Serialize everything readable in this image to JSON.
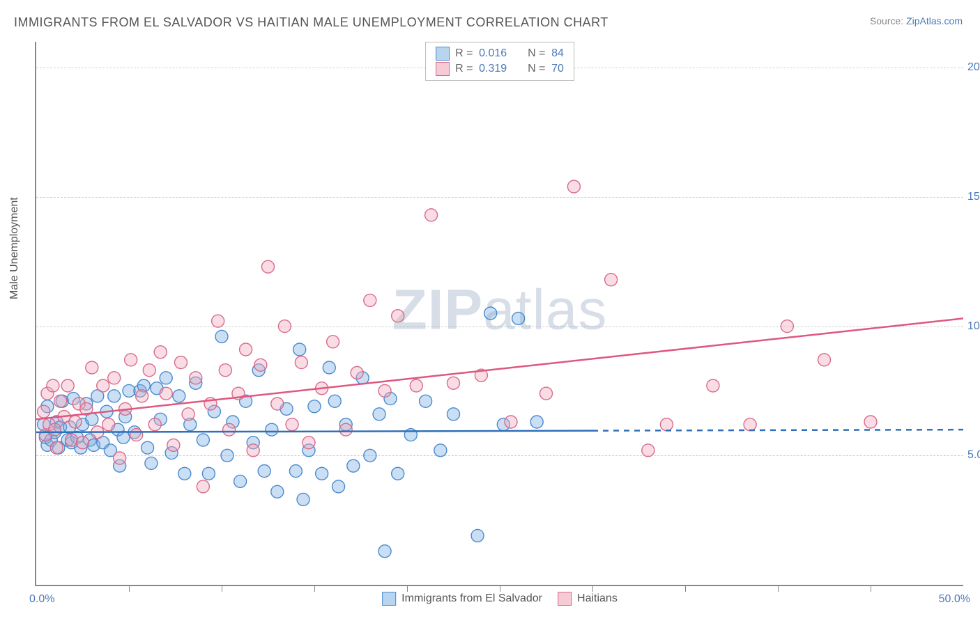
{
  "title": "IMMIGRANTS FROM EL SALVADOR VS HAITIAN MALE UNEMPLOYMENT CORRELATION CHART",
  "source_label": "Source: ",
  "source_value": "ZipAtlas.com",
  "ylabel": "Male Unemployment",
  "watermark_bold": "ZIP",
  "watermark_rest": "atlas",
  "chart": {
    "type": "scatter",
    "background_color": "#ffffff",
    "grid_color": "#d0d0d0",
    "axis_color": "#888888",
    "tick_label_color": "#4a7ab8",
    "xlim": [
      0,
      50
    ],
    "ylim": [
      0,
      21
    ],
    "xticks": [
      5,
      10,
      15,
      20,
      25,
      30,
      35,
      40,
      45
    ],
    "yticks": [
      {
        "v": 5,
        "label": "5.0%"
      },
      {
        "v": 10,
        "label": "10.0%"
      },
      {
        "v": 15,
        "label": "15.0%"
      },
      {
        "v": 20,
        "label": "20.0%"
      }
    ],
    "x_min_label": "0.0%",
    "x_max_label": "50.0%",
    "label_fontsize": 16,
    "title_fontsize": 18,
    "marker_radius": 9,
    "marker_stroke_width": 1.4,
    "marker_fill_opacity": 0.4,
    "series": [
      {
        "name": "Immigrants from El Salvador",
        "short": "blue",
        "R": "0.016",
        "N": "84",
        "color_fill": "#7ab0e0",
        "color_stroke": "#4a8acf",
        "trend": {
          "x1": 0,
          "y1": 5.9,
          "x2": 30,
          "y2": 6.0,
          "x_dash_to": 50,
          "color": "#2f6fb8",
          "width": 2.5
        },
        "points": [
          [
            0.4,
            6.2
          ],
          [
            0.5,
            5.7
          ],
          [
            0.6,
            5.4
          ],
          [
            0.6,
            6.9
          ],
          [
            0.8,
            5.6
          ],
          [
            1.0,
            5.9
          ],
          [
            1.1,
            6.3
          ],
          [
            1.2,
            5.3
          ],
          [
            1.3,
            6.1
          ],
          [
            1.4,
            7.1
          ],
          [
            1.7,
            5.6
          ],
          [
            1.8,
            6.1
          ],
          [
            1.9,
            5.5
          ],
          [
            2.0,
            7.2
          ],
          [
            2.2,
            5.7
          ],
          [
            2.4,
            5.3
          ],
          [
            2.5,
            6.2
          ],
          [
            2.7,
            7.0
          ],
          [
            2.9,
            5.6
          ],
          [
            3.0,
            6.4
          ],
          [
            3.1,
            5.4
          ],
          [
            3.3,
            7.3
          ],
          [
            3.6,
            5.5
          ],
          [
            3.8,
            6.7
          ],
          [
            4.0,
            5.2
          ],
          [
            4.2,
            7.3
          ],
          [
            4.4,
            6.0
          ],
          [
            4.5,
            4.6
          ],
          [
            4.7,
            5.7
          ],
          [
            4.8,
            6.5
          ],
          [
            5.0,
            7.5
          ],
          [
            5.3,
            5.9
          ],
          [
            5.6,
            7.5
          ],
          [
            5.8,
            7.7
          ],
          [
            6.0,
            5.3
          ],
          [
            6.2,
            4.7
          ],
          [
            6.5,
            7.6
          ],
          [
            6.7,
            6.4
          ],
          [
            7.0,
            8.0
          ],
          [
            7.3,
            5.1
          ],
          [
            7.7,
            7.3
          ],
          [
            8.0,
            4.3
          ],
          [
            8.3,
            6.2
          ],
          [
            8.6,
            7.8
          ],
          [
            9.0,
            5.6
          ],
          [
            9.3,
            4.3
          ],
          [
            9.6,
            6.7
          ],
          [
            10.0,
            9.6
          ],
          [
            10.3,
            5.0
          ],
          [
            10.6,
            6.3
          ],
          [
            11.0,
            4.0
          ],
          [
            11.3,
            7.1
          ],
          [
            11.7,
            5.5
          ],
          [
            12.0,
            8.3
          ],
          [
            12.3,
            4.4
          ],
          [
            12.7,
            6.0
          ],
          [
            13.0,
            3.6
          ],
          [
            13.5,
            6.8
          ],
          [
            14.0,
            4.4
          ],
          [
            14.2,
            9.1
          ],
          [
            14.4,
            3.3
          ],
          [
            14.7,
            5.2
          ],
          [
            15.0,
            6.9
          ],
          [
            15.4,
            4.3
          ],
          [
            15.8,
            8.4
          ],
          [
            16.1,
            7.1
          ],
          [
            16.3,
            3.8
          ],
          [
            16.7,
            6.2
          ],
          [
            17.1,
            4.6
          ],
          [
            17.6,
            8.0
          ],
          [
            18.0,
            5.0
          ],
          [
            18.5,
            6.6
          ],
          [
            18.8,
            1.3
          ],
          [
            19.1,
            7.2
          ],
          [
            19.5,
            4.3
          ],
          [
            20.2,
            5.8
          ],
          [
            21.0,
            7.1
          ],
          [
            21.8,
            5.2
          ],
          [
            22.5,
            6.6
          ],
          [
            23.8,
            1.9
          ],
          [
            24.5,
            10.5
          ],
          [
            25.2,
            6.2
          ],
          [
            26.0,
            10.3
          ],
          [
            27.0,
            6.3
          ]
        ]
      },
      {
        "name": "Haitians",
        "short": "pink",
        "R": "0.319",
        "N": "70",
        "color_fill": "#f0a8bc",
        "color_stroke": "#d96a8c",
        "trend": {
          "x1": 0,
          "y1": 6.4,
          "x2": 50,
          "y2": 10.3,
          "x_dash_to": 50,
          "color": "#e0567e",
          "width": 2.5
        },
        "points": [
          [
            0.4,
            6.7
          ],
          [
            0.5,
            5.8
          ],
          [
            0.6,
            7.4
          ],
          [
            0.7,
            6.2
          ],
          [
            0.9,
            7.7
          ],
          [
            1.0,
            6.0
          ],
          [
            1.1,
            5.3
          ],
          [
            1.3,
            7.1
          ],
          [
            1.5,
            6.5
          ],
          [
            1.7,
            7.7
          ],
          [
            1.9,
            5.6
          ],
          [
            2.1,
            6.3
          ],
          [
            2.3,
            7.0
          ],
          [
            2.5,
            5.5
          ],
          [
            2.7,
            6.8
          ],
          [
            3.0,
            8.4
          ],
          [
            3.3,
            5.9
          ],
          [
            3.6,
            7.7
          ],
          [
            3.9,
            6.2
          ],
          [
            4.2,
            8.0
          ],
          [
            4.5,
            4.9
          ],
          [
            4.8,
            6.8
          ],
          [
            5.1,
            8.7
          ],
          [
            5.4,
            5.8
          ],
          [
            5.7,
            7.3
          ],
          [
            6.1,
            8.3
          ],
          [
            6.4,
            6.2
          ],
          [
            6.7,
            9.0
          ],
          [
            7.0,
            7.4
          ],
          [
            7.4,
            5.4
          ],
          [
            7.8,
            8.6
          ],
          [
            8.2,
            6.6
          ],
          [
            8.6,
            8.0
          ],
          [
            9.0,
            3.8
          ],
          [
            9.4,
            7.0
          ],
          [
            9.8,
            10.2
          ],
          [
            10.2,
            8.3
          ],
          [
            10.4,
            6.0
          ],
          [
            10.9,
            7.4
          ],
          [
            11.3,
            9.1
          ],
          [
            11.7,
            5.2
          ],
          [
            12.1,
            8.5
          ],
          [
            12.5,
            12.3
          ],
          [
            13.0,
            7.0
          ],
          [
            13.4,
            10.0
          ],
          [
            13.8,
            6.2
          ],
          [
            14.3,
            8.6
          ],
          [
            14.7,
            5.5
          ],
          [
            15.4,
            7.6
          ],
          [
            16.0,
            9.4
          ],
          [
            16.7,
            6.0
          ],
          [
            17.3,
            8.2
          ],
          [
            18.0,
            11.0
          ],
          [
            18.8,
            7.5
          ],
          [
            19.5,
            10.4
          ],
          [
            20.5,
            7.7
          ],
          [
            21.3,
            14.3
          ],
          [
            22.5,
            7.8
          ],
          [
            24.0,
            8.1
          ],
          [
            25.6,
            6.3
          ],
          [
            27.5,
            7.4
          ],
          [
            29.0,
            15.4
          ],
          [
            31.0,
            11.8
          ],
          [
            33.0,
            5.2
          ],
          [
            34.0,
            6.2
          ],
          [
            36.5,
            7.7
          ],
          [
            38.5,
            6.2
          ],
          [
            40.5,
            10.0
          ],
          [
            42.5,
            8.7
          ],
          [
            45.0,
            6.3
          ]
        ]
      }
    ]
  },
  "legend_bottom": [
    {
      "swatch": "blue",
      "label": "Immigrants from El Salvador"
    },
    {
      "swatch": "pink",
      "label": "Haitians"
    }
  ]
}
